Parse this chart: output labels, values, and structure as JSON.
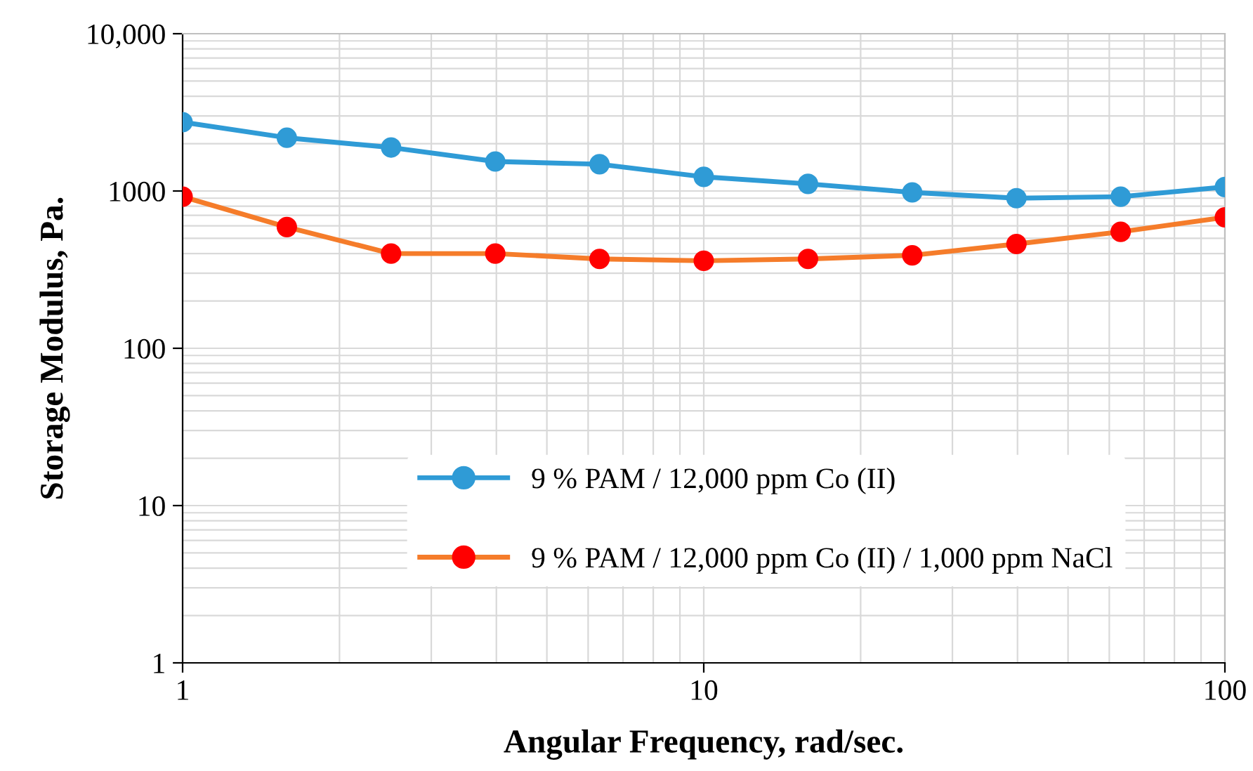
{
  "chart_data": {
    "type": "line",
    "xlabel": "Angular Frequency, rad/sec.",
    "ylabel": "Storage Modulus, Pa.",
    "log": "xy",
    "x": [
      1,
      1.585,
      2.512,
      3.981,
      6.31,
      10,
      15.85,
      25.12,
      39.81,
      63.1,
      100
    ],
    "series": [
      {
        "name": "9 % PAM / 12,000 ppm Co (II)",
        "color": "#2f9bd6",
        "values": [
          2740,
          2180,
          1890,
          1540,
          1480,
          1230,
          1110,
          980,
          900,
          920,
          1060
        ]
      },
      {
        "name": "9 % PAM / 12,000 ppm Co (II) / 1,000 ppm NaCl",
        "color": "#f57c2a",
        "colors": [
          "#ff0000",
          "#ff0000",
          "#ff0000",
          "#ff0000",
          "#ff0000",
          "#ff0000",
          "#ff0000",
          "#ff0000",
          "#ff0000",
          "#ff0000",
          "#ff0000"
        ],
        "values": [
          920,
          590,
          400,
          400,
          370,
          360,
          370,
          390,
          460,
          550,
          680
        ]
      }
    ],
    "xlim": [
      1,
      100
    ],
    "ylim": [
      1,
      10000
    ],
    "xticks": [
      1,
      10,
      100
    ],
    "yticks": [
      1,
      10,
      100,
      1000,
      {
        "value": 10000,
        "label": "10,000"
      }
    ],
    "grid": true,
    "legend": "bottom",
    "marker": "circle",
    "line_style": "solid"
  }
}
